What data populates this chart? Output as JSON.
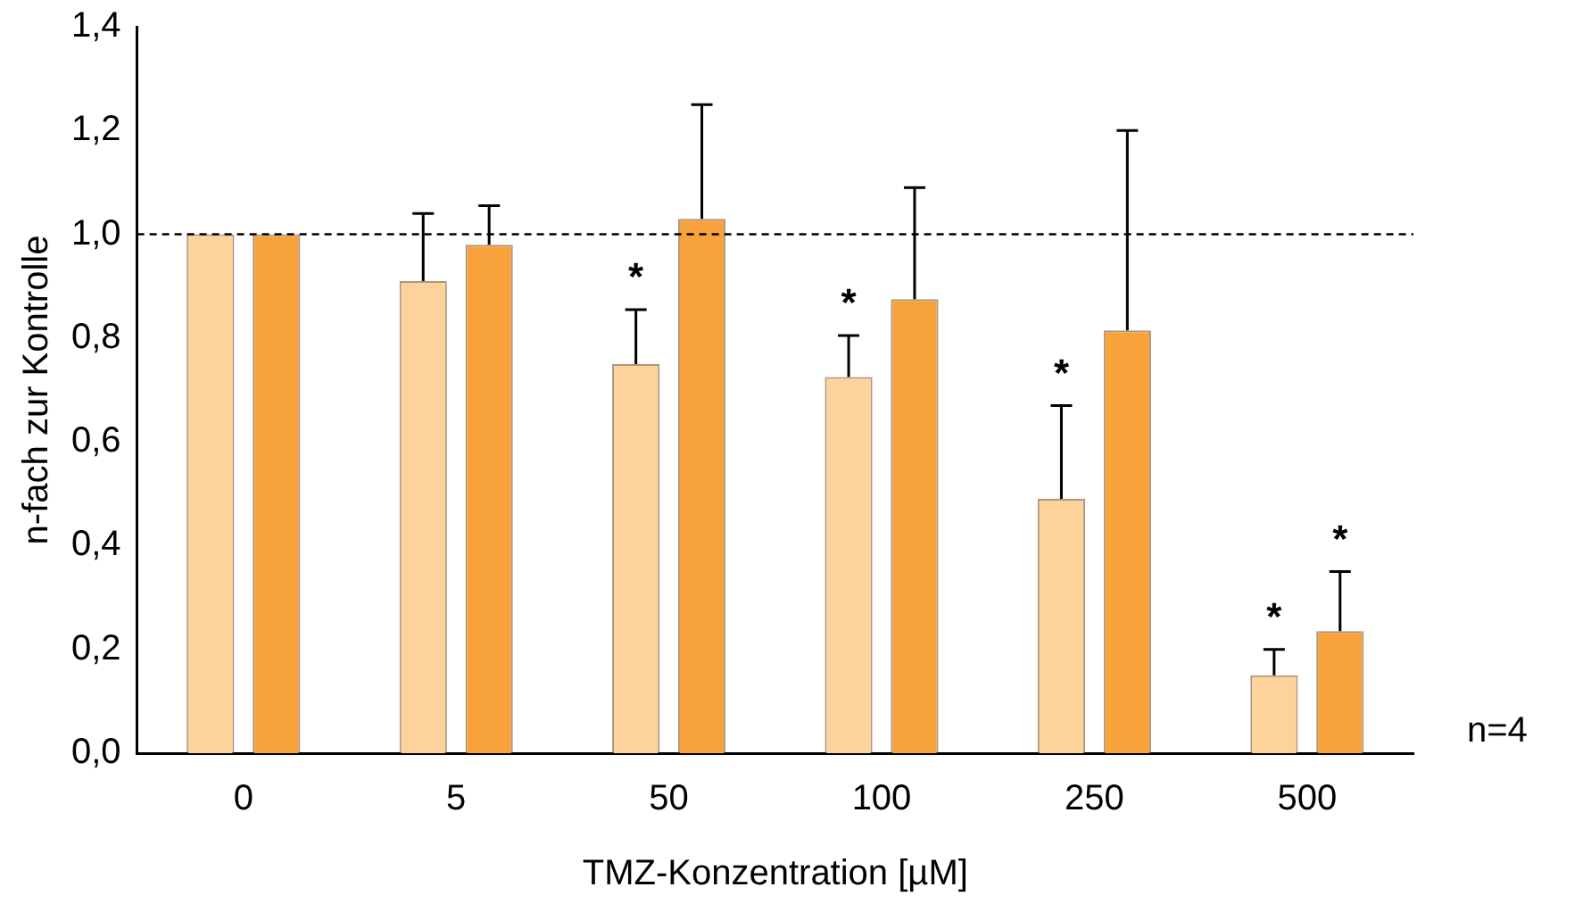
{
  "chart_data": {
    "type": "bar",
    "xlabel": "TMZ-Konzentration [µM]",
    "ylabel": "n-fach zur Kontrolle",
    "categories": [
      "0",
      "5",
      "50",
      "100",
      "250",
      "500"
    ],
    "series": [
      {
        "color": "#fdd39b",
        "values": [
          1.0,
          0.91,
          0.75,
          0.725,
          0.49,
          0.15
        ],
        "errors": [
          null,
          [
            0.91,
            1.04
          ],
          [
            0.75,
            0.855
          ],
          [
            0.725,
            0.805
          ],
          [
            0.49,
            0.67
          ],
          [
            0.15,
            0.2
          ]
        ],
        "value_labels": [
          null,
          null,
          "*",
          "*",
          "*",
          "*"
        ]
      },
      {
        "color": "#f8a23c",
        "values": [
          1.0,
          0.98,
          1.03,
          0.875,
          0.815,
          0.235
        ],
        "errors": [
          null,
          [
            0.98,
            1.055
          ],
          [
            1.03,
            1.25
          ],
          [
            0.875,
            1.09
          ],
          [
            0.815,
            1.2
          ],
          [
            0.235,
            0.35
          ]
        ],
        "value_labels": [
          null,
          null,
          null,
          null,
          null,
          "*"
        ]
      }
    ],
    "ylim": [
      0,
      1.4
    ],
    "yticks": [
      {
        "value": 0,
        "label": "0,0"
      },
      {
        "value": 0.2,
        "label": "0,2"
      },
      {
        "value": 0.4,
        "label": "0,4"
      },
      {
        "value": 0.6,
        "label": "0,6"
      },
      {
        "value": 0.8,
        "label": "0,8"
      },
      {
        "value": 1.0,
        "label": "1,0"
      },
      {
        "value": 1.2,
        "label": "1,2"
      },
      {
        "value": 1.4,
        "label": "1,4"
      }
    ],
    "ref_lines": [
      {
        "axis": "y",
        "value": 1.0,
        "color": "#000000",
        "line_style": "dashed"
      }
    ],
    "annotations": [
      "n=4"
    ],
    "grid": false,
    "legend": false
  }
}
